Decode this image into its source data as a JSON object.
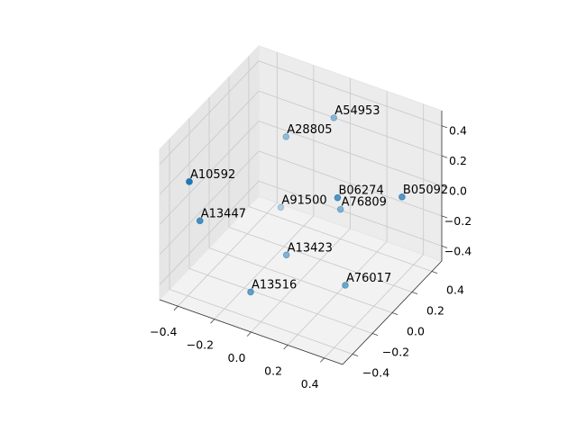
{
  "chart_data": {
    "type": "scatter3d",
    "color": "#1f77b4",
    "labels": [
      "A54953",
      "A28805",
      "A10592",
      "A13447",
      "A91500",
      "B06274",
      "A76809",
      "B05092",
      "A13423",
      "A13516",
      "A76017"
    ],
    "x": [
      -0.03,
      -0.21,
      -0.37,
      -0.35,
      -0.19,
      0.18,
      0.12,
      0.44,
      -0.04,
      -0.1,
      0.26
    ],
    "y": [
      0.39,
      0.24,
      -0.44,
      -0.37,
      0.15,
      0.04,
      0.18,
      0.21,
      -0.07,
      -0.32,
      -0.03
    ],
    "z": [
      0.3,
      0.2,
      0.3,
      0.0,
      -0.2,
      0.1,
      -0.1,
      0.1,
      -0.3,
      -0.4,
      -0.4
    ],
    "xlim": [
      -0.5,
      0.5
    ],
    "ylim": [
      -0.5,
      0.5
    ],
    "zlim": [
      -0.5,
      0.5
    ],
    "xticks": [
      {
        "value": -0.4,
        "label": "−0.4"
      },
      {
        "value": -0.2,
        "label": "−0.2"
      },
      {
        "value": 0,
        "label": "0.0"
      },
      {
        "value": 0.2,
        "label": "0.2"
      },
      {
        "value": 0.4,
        "label": "0.4"
      }
    ],
    "yticks": [
      {
        "value": -0.4,
        "label": "−0.4"
      },
      {
        "value": -0.2,
        "label": "−0.2"
      },
      {
        "value": 0,
        "label": "0.0"
      },
      {
        "value": 0.2,
        "label": "0.2"
      },
      {
        "value": 0.4,
        "label": "0.4"
      }
    ],
    "zticks": [
      {
        "value": -0.4,
        "label": "−0.4"
      },
      {
        "value": -0.2,
        "label": "−0.2"
      },
      {
        "value": 0,
        "label": "0.0"
      },
      {
        "value": 0.2,
        "label": "0.2"
      },
      {
        "value": 0.4,
        "label": "0.4"
      }
    ],
    "grid": true
  }
}
